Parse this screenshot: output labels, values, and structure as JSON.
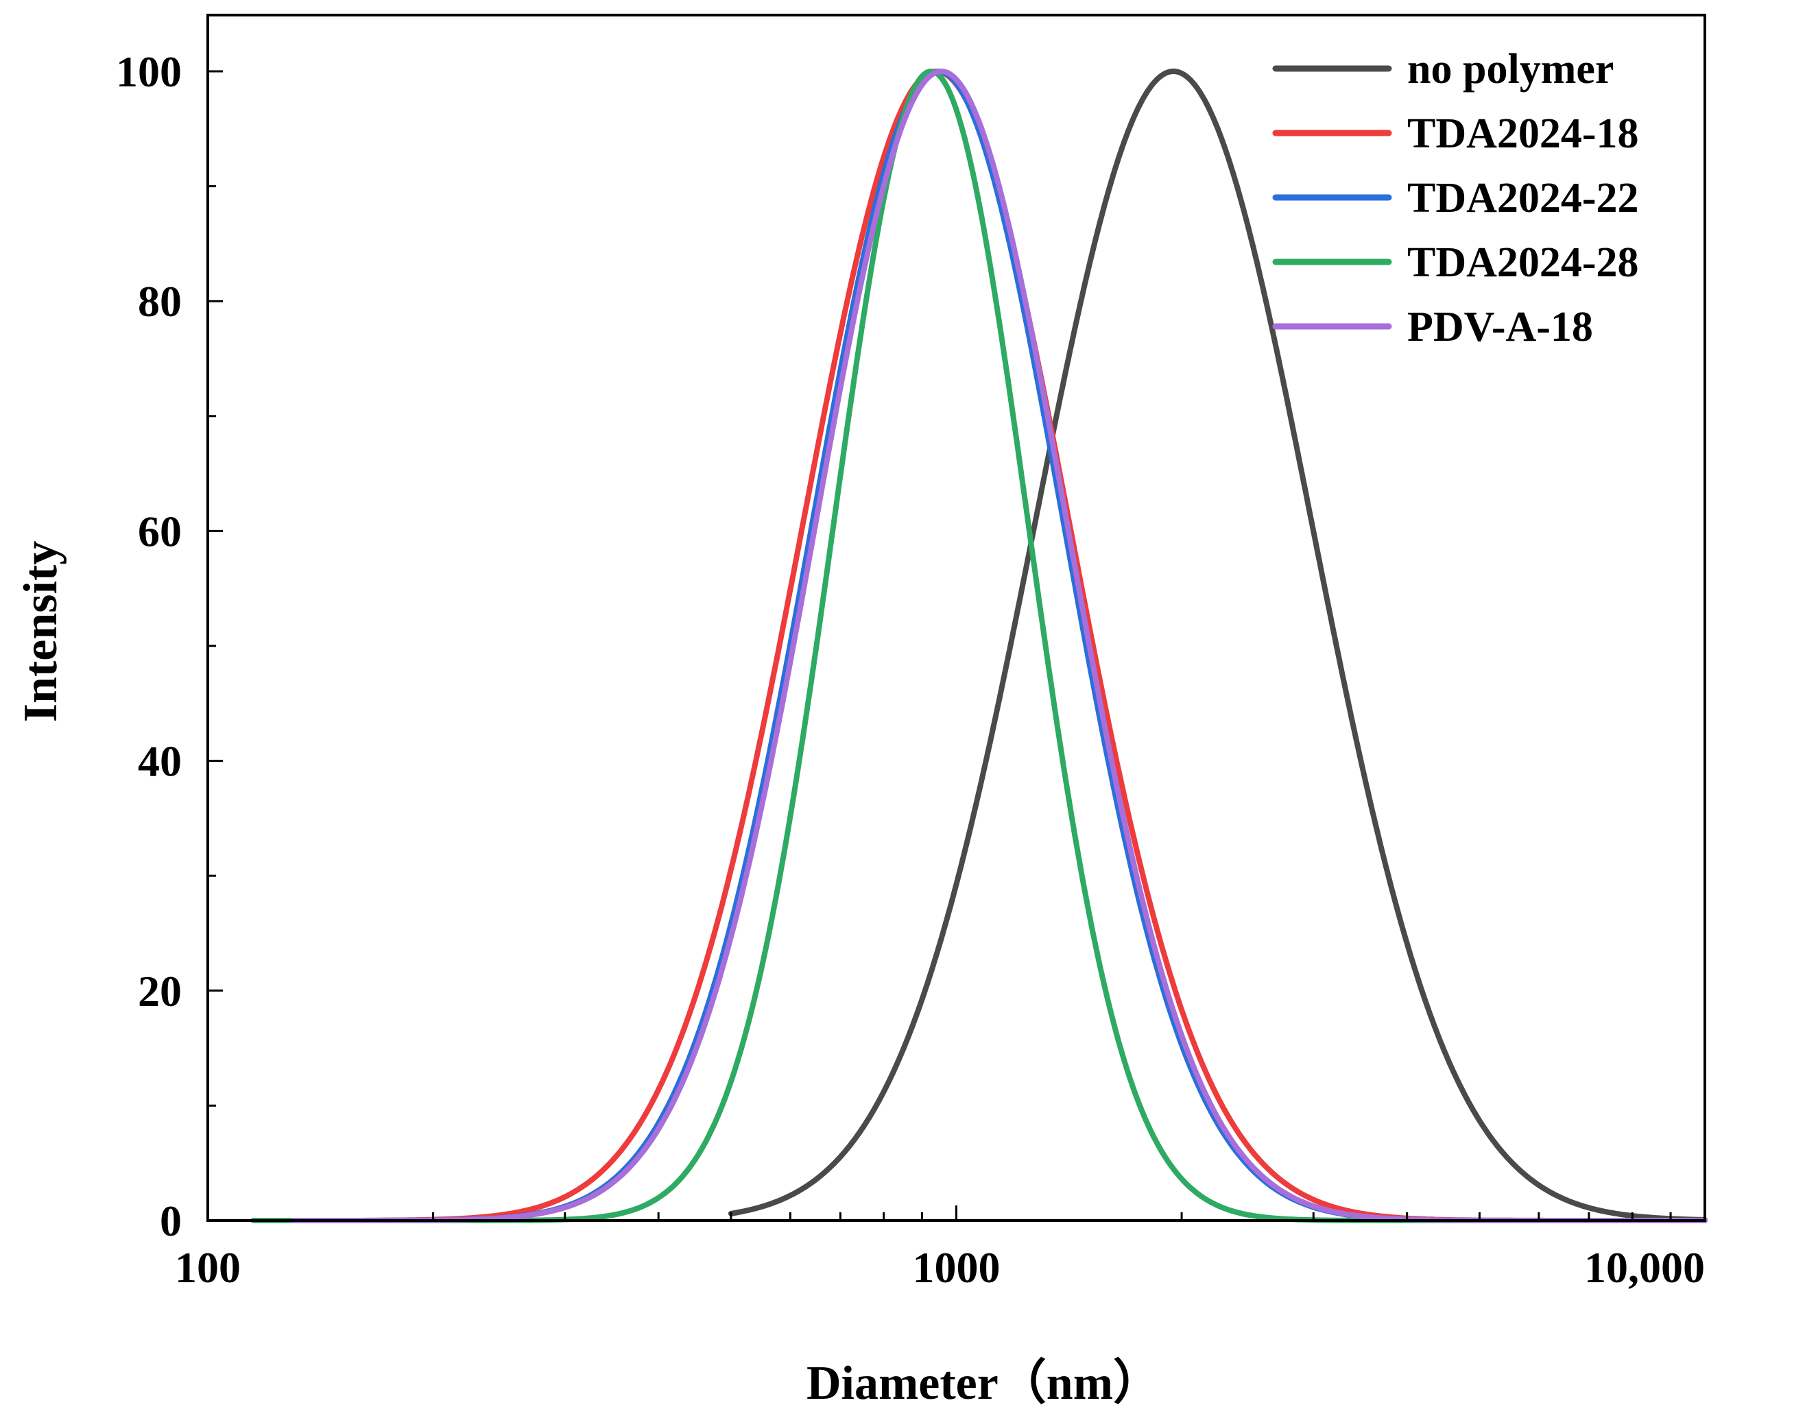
{
  "chart_data": {
    "type": "line",
    "title": "",
    "xlabel": "Diameter（nm）",
    "ylabel": "Intensity",
    "xscale": "log",
    "xlim": [
      100,
      10000
    ],
    "ylim": [
      0,
      105
    ],
    "grid": false,
    "legend_position": "top-right",
    "x_tick_labels": [
      {
        "value": 100,
        "label": "100"
      },
      {
        "value": 1000,
        "label": "1000"
      },
      {
        "value": 10000,
        "label": "10,000"
      }
    ],
    "y_tick_labels": [
      {
        "value": 0,
        "label": "0"
      },
      {
        "value": 20,
        "label": "20"
      },
      {
        "value": 40,
        "label": "40"
      },
      {
        "value": 60,
        "label": "60"
      },
      {
        "value": 80,
        "label": "80"
      },
      {
        "value": 100,
        "label": "100"
      }
    ],
    "series": [
      {
        "name": "no polymer",
        "color": "#4a4a4a",
        "peak_diameter": 1950,
        "peak_intensity": 100,
        "log10_sigma": 0.185,
        "x_start": 500,
        "x_end": 10000
      },
      {
        "name": "TDA2024-18",
        "color": "#ee3b3b",
        "peak_diameter": 940,
        "peak_intensity": 100,
        "log10_sigma": 0.178,
        "x_start": 170,
        "x_end": 10000
      },
      {
        "name": "TDA2024-22",
        "color": "#2a6fdb",
        "peak_diameter": 945,
        "peak_intensity": 100,
        "log10_sigma": 0.168,
        "x_start": 130,
        "x_end": 10000
      },
      {
        "name": "TDA2024-28",
        "color": "#2eaa62",
        "peak_diameter": 925,
        "peak_intensity": 100,
        "log10_sigma": 0.13,
        "x_start": 115,
        "x_end": 10000
      },
      {
        "name": "PDV-A-18",
        "color": "#a86fdb",
        "peak_diameter": 955,
        "peak_intensity": 100,
        "log10_sigma": 0.168,
        "x_start": 130,
        "x_end": 10000
      }
    ]
  }
}
